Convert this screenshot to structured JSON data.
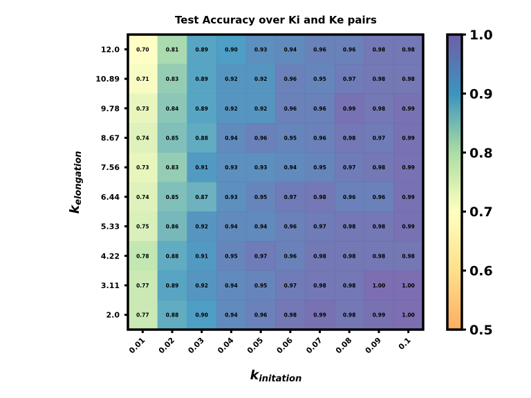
{
  "chart_data": {
    "type": "heatmap",
    "title": "Test Accuracy over Ki and Ke pairs",
    "xlabel": {
      "main": "k",
      "sub": "initation"
    },
    "ylabel": {
      "main": "k",
      "sub": "elongation"
    },
    "x_categories": [
      "0.01",
      "0.02",
      "0.03",
      "0.04",
      "0.05",
      "0.06",
      "0.07",
      "0.08",
      "0.09",
      "0.1"
    ],
    "y_categories": [
      "12.0",
      "10.89",
      "9.78",
      "8.67",
      "7.56",
      "6.44",
      "5.33",
      "4.22",
      "3.11",
      "2.0"
    ],
    "values": [
      [
        0.7,
        0.81,
        0.89,
        0.9,
        0.93,
        0.94,
        0.96,
        0.96,
        0.98,
        0.98
      ],
      [
        0.71,
        0.83,
        0.89,
        0.92,
        0.92,
        0.96,
        0.95,
        0.97,
        0.98,
        0.98
      ],
      [
        0.73,
        0.84,
        0.89,
        0.92,
        0.92,
        0.96,
        0.96,
        0.99,
        0.98,
        0.99
      ],
      [
        0.74,
        0.85,
        0.88,
        0.94,
        0.96,
        0.95,
        0.96,
        0.98,
        0.97,
        0.99
      ],
      [
        0.73,
        0.83,
        0.91,
        0.93,
        0.93,
        0.94,
        0.95,
        0.97,
        0.98,
        0.99
      ],
      [
        0.74,
        0.85,
        0.87,
        0.93,
        0.95,
        0.97,
        0.98,
        0.96,
        0.96,
        0.99
      ],
      [
        0.75,
        0.86,
        0.92,
        0.94,
        0.94,
        0.96,
        0.97,
        0.98,
        0.98,
        0.99
      ],
      [
        0.78,
        0.88,
        0.91,
        0.95,
        0.97,
        0.96,
        0.98,
        0.98,
        0.98,
        0.98
      ],
      [
        0.77,
        0.89,
        0.92,
        0.94,
        0.95,
        0.97,
        0.98,
        0.98,
        1.0,
        1.0
      ],
      [
        0.77,
        0.88,
        0.9,
        0.94,
        0.96,
        0.98,
        0.99,
        0.98,
        0.99,
        1.0
      ]
    ],
    "colorbar": {
      "range": [
        0.5,
        1.0
      ],
      "ticks": [
        "0.5",
        "0.6",
        "0.7",
        "0.8",
        "0.9",
        "1.0"
      ],
      "colormap": "Spectral"
    },
    "grid": false
  }
}
